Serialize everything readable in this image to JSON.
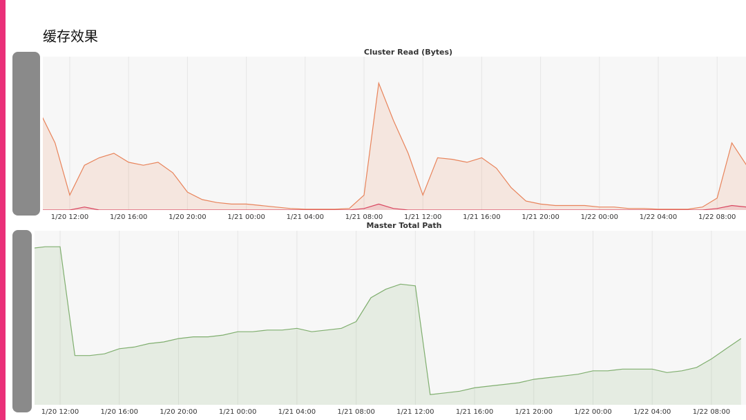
{
  "slide_title": "缓存效果",
  "chart_data": [
    {
      "type": "area",
      "title": "Cluster Read (Bytes)",
      "grid": true,
      "ylim": [
        0,
        100
      ],
      "x": [
        "1/20 10:00",
        "1/20 11:00",
        "1/20 12:00",
        "1/20 13:00",
        "1/20 14:00",
        "1/20 15:00",
        "1/20 16:00",
        "1/20 17:00",
        "1/20 18:00",
        "1/20 19:00",
        "1/20 20:00",
        "1/20 21:00",
        "1/20 22:00",
        "1/20 23:00",
        "1/21 00:00",
        "1/21 01:00",
        "1/21 02:00",
        "1/21 03:00",
        "1/21 04:00",
        "1/21 05:00",
        "1/21 06:00",
        "1/21 07:00",
        "1/21 08:00",
        "1/21 09:00",
        "1/21 10:00",
        "1/21 11:00",
        "1/21 12:00",
        "1/21 13:00",
        "1/21 14:00",
        "1/21 15:00",
        "1/21 16:00",
        "1/21 17:00",
        "1/21 18:00",
        "1/21 19:00",
        "1/21 20:00",
        "1/21 21:00",
        "1/21 22:00",
        "1/21 23:00",
        "1/22 00:00",
        "1/22 01:00",
        "1/22 02:00",
        "1/22 03:00",
        "1/22 04:00",
        "1/22 05:00",
        "1/22 06:00",
        "1/22 07:00",
        "1/22 08:00",
        "1/22 09:00",
        "1/22 10:00"
      ],
      "xticks": [
        "1/20 12:00",
        "1/20 16:00",
        "1/20 20:00",
        "1/21 00:00",
        "1/21 04:00",
        "1/21 08:00",
        "1/21 12:00",
        "1/21 16:00",
        "1/21 20:00",
        "1/22 00:00",
        "1/22 04:00",
        "1/22 08:00"
      ],
      "series": [
        {
          "color": "#e8835a",
          "values": [
            65,
            45,
            10,
            30,
            35,
            38,
            32,
            30,
            32,
            25,
            12,
            7,
            5,
            4,
            4,
            3,
            2,
            1,
            0.5,
            0.5,
            0.5,
            1,
            10,
            85,
            60,
            38,
            10,
            35,
            34,
            32,
            35,
            28,
            15,
            6,
            4,
            3,
            3,
            3,
            2,
            2,
            1,
            1,
            0.5,
            0.5,
            0.5,
            2,
            8,
            45,
            30
          ]
        },
        {
          "color": "#d9455f",
          "values": [
            0,
            0,
            0,
            2,
            0,
            0,
            0,
            0,
            0,
            0,
            0,
            0,
            0,
            0,
            0,
            0,
            0,
            0,
            0,
            0,
            0,
            0,
            1,
            4,
            1,
            0,
            0,
            0,
            0,
            0,
            0,
            0,
            0,
            0,
            0,
            0,
            0,
            0,
            0,
            0,
            0,
            0,
            0,
            0,
            0,
            0,
            1,
            3,
            2
          ]
        }
      ]
    },
    {
      "type": "area",
      "title": "Master Total Path",
      "grid": true,
      "ylim": [
        0,
        100
      ],
      "x": [
        "1/20 10:00",
        "1/20 11:00",
        "1/20 12:00",
        "1/20 13:00",
        "1/20 14:00",
        "1/20 15:00",
        "1/20 16:00",
        "1/20 17:00",
        "1/20 18:00",
        "1/20 19:00",
        "1/20 20:00",
        "1/20 21:00",
        "1/20 22:00",
        "1/20 23:00",
        "1/21 00:00",
        "1/21 01:00",
        "1/21 02:00",
        "1/21 03:00",
        "1/21 04:00",
        "1/21 05:00",
        "1/21 06:00",
        "1/21 07:00",
        "1/21 08:00",
        "1/21 09:00",
        "1/21 10:00",
        "1/21 11:00",
        "1/21 12:00",
        "1/21 13:00",
        "1/21 14:00",
        "1/21 15:00",
        "1/21 16:00",
        "1/21 17:00",
        "1/21 18:00",
        "1/21 19:00",
        "1/21 20:00",
        "1/21 21:00",
        "1/21 22:00",
        "1/21 23:00",
        "1/22 00:00",
        "1/22 01:00",
        "1/22 02:00",
        "1/22 03:00",
        "1/22 04:00",
        "1/22 05:00",
        "1/22 06:00",
        "1/22 07:00",
        "1/22 08:00",
        "1/22 09:00",
        "1/22 10:00"
      ],
      "xticks": [
        "1/20 12:00",
        "1/20 16:00",
        "1/20 20:00",
        "1/21 00:00",
        "1/21 04:00",
        "1/21 08:00",
        "1/21 12:00",
        "1/21 16:00",
        "1/21 20:00",
        "1/22 00:00",
        "1/22 04:00",
        "1/22 08:00"
      ],
      "series": [
        {
          "color": "#7fae6e",
          "values": [
            92,
            93,
            93,
            29,
            29,
            30,
            33,
            34,
            36,
            37,
            39,
            40,
            40,
            41,
            43,
            43,
            44,
            44,
            45,
            43,
            44,
            45,
            49,
            63,
            68,
            71,
            70,
            6,
            7,
            8,
            10,
            11,
            12,
            13,
            15,
            16,
            17,
            18,
            20,
            20,
            21,
            21,
            21,
            19,
            20,
            22,
            27,
            33,
            39
          ]
        }
      ]
    }
  ]
}
